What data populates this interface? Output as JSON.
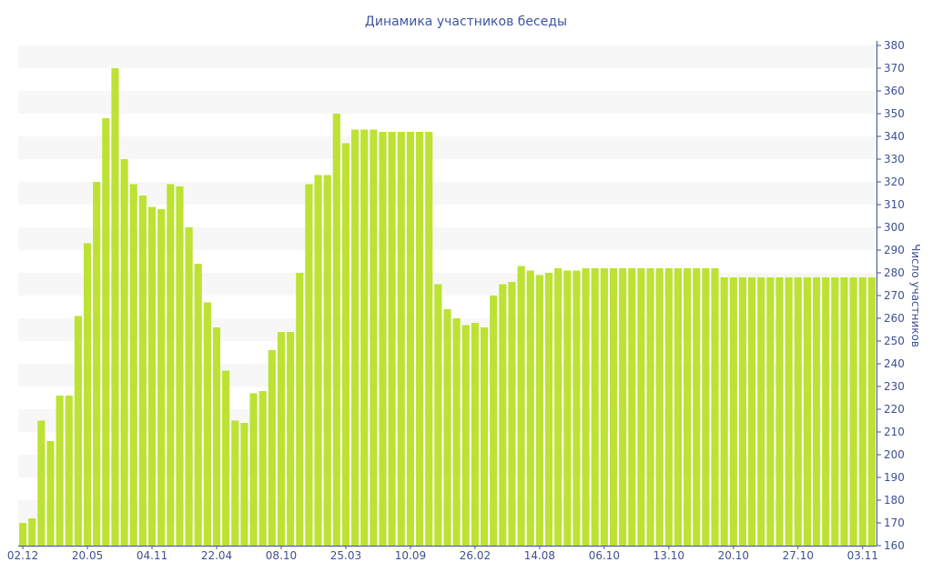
{
  "chart_data": {
    "type": "bar",
    "title": "Динамика участников беседы",
    "xlabel": "",
    "ylabel": "Число участников",
    "ylim": [
      160,
      380
    ],
    "ytick_step": 10,
    "y_axis_side": "right",
    "grid": "alternating horizontal bands",
    "x_tick_labels": [
      "02.12",
      "20.05",
      "04.11",
      "22.04",
      "08.10",
      "25.03",
      "10.09",
      "26.02",
      "14.08",
      "06.10",
      "13.10",
      "20.10",
      "27.10",
      "03.11"
    ],
    "x_tick_every_n_bars": 7,
    "values": [
      170,
      172,
      215,
      206,
      226,
      226,
      261,
      293,
      320,
      348,
      370,
      330,
      319,
      314,
      309,
      308,
      319,
      318,
      300,
      284,
      267,
      256,
      237,
      215,
      214,
      227,
      228,
      246,
      254,
      254,
      280,
      319,
      323,
      323,
      350,
      337,
      343,
      343,
      343,
      342,
      342,
      342,
      342,
      342,
      342,
      275,
      264,
      260,
      257,
      258,
      256,
      270,
      275,
      276,
      283,
      281,
      279,
      280,
      282,
      281,
      281,
      282,
      282,
      282,
      282,
      282,
      282,
      282,
      282,
      282,
      282,
      282,
      282,
      282,
      282,
      282,
      278,
      278,
      278,
      278,
      278,
      278,
      278,
      278,
      278,
      278,
      278,
      278,
      278,
      278,
      278,
      278,
      278
    ],
    "colors": {
      "bar": "#bde233",
      "axis": "#3f4f93",
      "band": "#f7f7f7",
      "title": "#3f55a0"
    }
  }
}
